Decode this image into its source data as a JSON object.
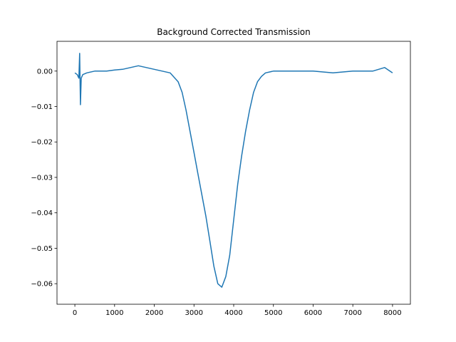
{
  "chart_data": {
    "type": "line",
    "title": "Background Corrected Transmission",
    "xlabel": "",
    "ylabel": "",
    "xlim": [
      -450,
      8450
    ],
    "ylim": [
      -0.0658,
      0.0084
    ],
    "grid": false,
    "legend": "none",
    "x_ticks": [
      {
        "value": 0,
        "label": "0"
      },
      {
        "value": 1000,
        "label": "1000"
      },
      {
        "value": 2000,
        "label": "2000"
      },
      {
        "value": 3000,
        "label": "3000"
      },
      {
        "value": 4000,
        "label": "4000"
      },
      {
        "value": 5000,
        "label": "5000"
      },
      {
        "value": 6000,
        "label": "6000"
      },
      {
        "value": 7000,
        "label": "7000"
      },
      {
        "value": 8000,
        "label": "8000"
      }
    ],
    "y_ticks": [
      {
        "value": 0.0,
        "label": "0.00"
      },
      {
        "value": -0.01,
        "label": "−0.01"
      },
      {
        "value": -0.02,
        "label": "−0.02"
      },
      {
        "value": -0.03,
        "label": "−0.03"
      },
      {
        "value": -0.04,
        "label": "−0.04"
      },
      {
        "value": -0.05,
        "label": "−0.05"
      },
      {
        "value": -0.06,
        "label": "−0.06"
      }
    ],
    "series": [
      {
        "color": "#1f77b4",
        "x": [
          0,
          60,
          100,
          120,
          140,
          160,
          200,
          300,
          500,
          800,
          1000,
          1200,
          1400,
          1600,
          1800,
          2000,
          2200,
          2400,
          2600,
          2700,
          2800,
          2900,
          3000,
          3100,
          3200,
          3300,
          3400,
          3500,
          3600,
          3700,
          3800,
          3900,
          4000,
          4100,
          4200,
          4300,
          4400,
          4500,
          4600,
          4700,
          4800,
          5000,
          5500,
          6000,
          6500,
          7000,
          7500,
          7800,
          8000
        ],
        "y": [
          -0.0005,
          -0.001,
          -0.002,
          0.005,
          -0.0095,
          -0.002,
          -0.001,
          -0.0005,
          0.0,
          0.0,
          0.0003,
          0.0005,
          0.001,
          0.0015,
          0.001,
          0.0005,
          0.0,
          -0.0005,
          -0.003,
          -0.006,
          -0.011,
          -0.017,
          -0.023,
          -0.029,
          -0.035,
          -0.041,
          -0.048,
          -0.055,
          -0.06,
          -0.061,
          -0.058,
          -0.052,
          -0.042,
          -0.032,
          -0.024,
          -0.017,
          -0.011,
          -0.006,
          -0.003,
          -0.0015,
          -0.0005,
          0.0,
          0.0,
          0.0,
          -0.0005,
          0.0,
          0.0,
          0.001,
          -0.0005
        ]
      }
    ]
  }
}
